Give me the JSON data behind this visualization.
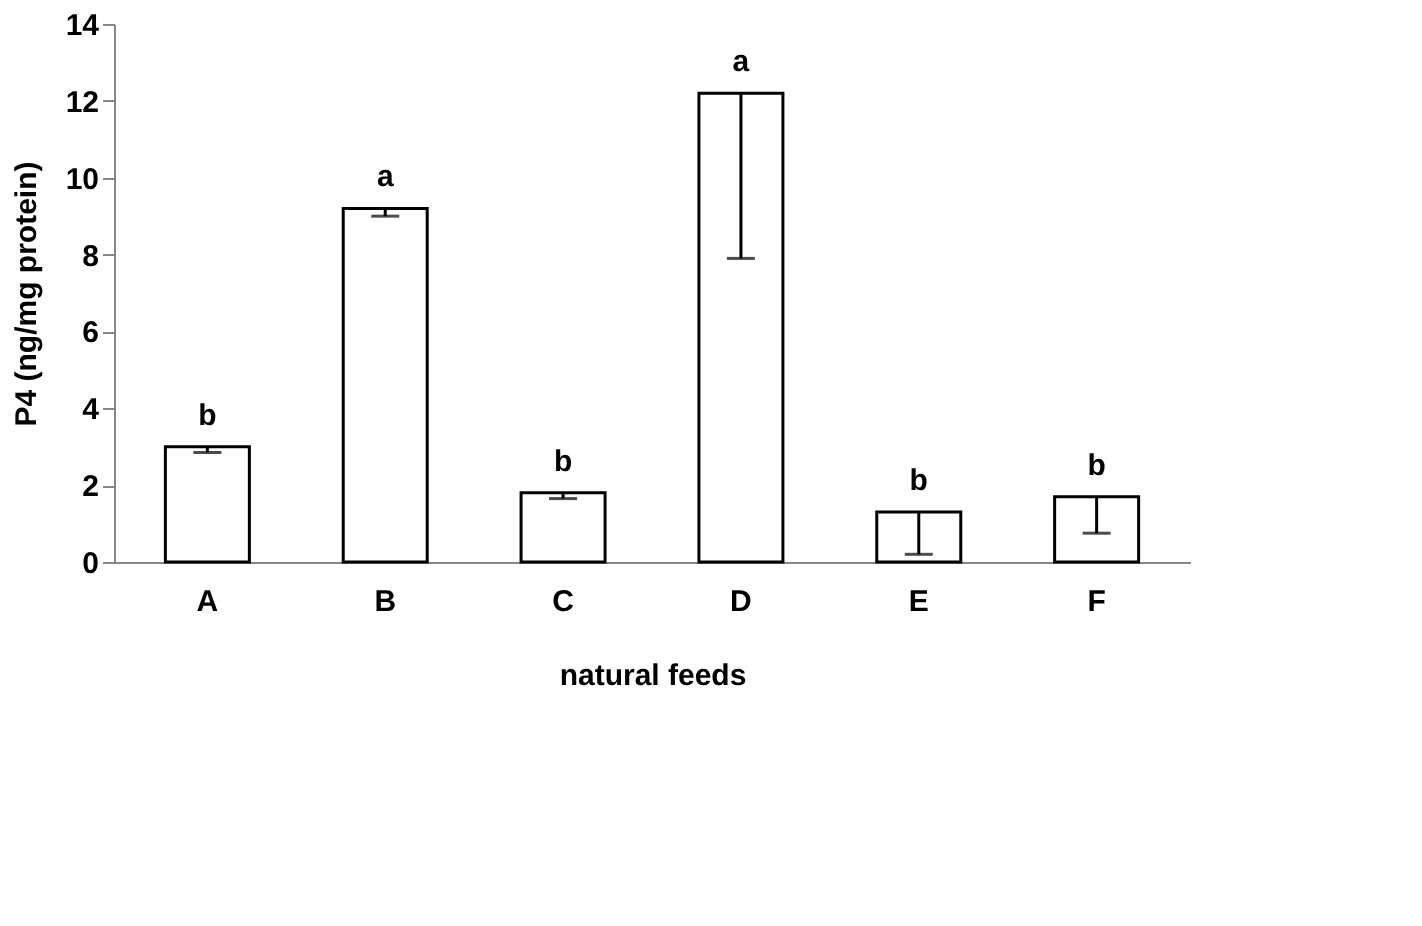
{
  "chart_data": {
    "type": "bar",
    "xlabel": "natural feeds",
    "ylabel": "P4 (ng/mg protein)",
    "categories": [
      "A",
      "B",
      "C",
      "D",
      "E",
      "F"
    ],
    "values": [
      3.0,
      9.2,
      1.8,
      12.2,
      1.3,
      1.7
    ],
    "color": "#ffffff",
    "errors": [
      [
        2.85,
        3.0
      ],
      [
        9.0,
        9.2
      ],
      [
        1.65,
        1.8
      ],
      [
        7.9,
        12.2
      ],
      [
        0.2,
        1.3
      ],
      [
        0.75,
        1.7
      ]
    ],
    "ylim": [
      0,
      14
    ],
    "yticks": [
      0,
      2,
      4,
      6,
      8,
      10,
      12,
      14
    ],
    "grid": false,
    "annotations": [
      {
        "text": "b",
        "x": "A",
        "y": 3.0
      },
      {
        "text": "a",
        "x": "B",
        "y": 9.2
      },
      {
        "text": "b",
        "x": "C",
        "y": 1.8
      },
      {
        "text": "a",
        "x": "D",
        "y": 12.2
      },
      {
        "text": "b",
        "x": "E",
        "y": 1.3
      },
      {
        "text": "b",
        "x": "F",
        "y": 1.7
      }
    ]
  }
}
